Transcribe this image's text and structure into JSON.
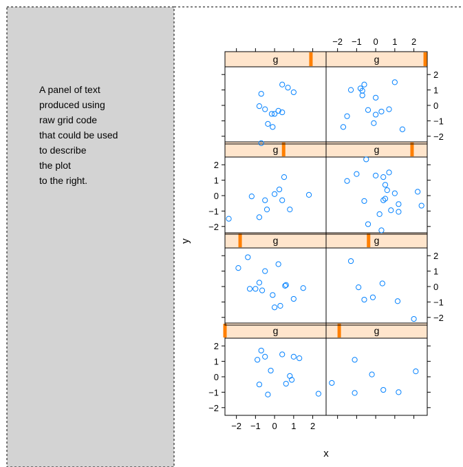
{
  "text_panel": {
    "lines": [
      "A panel of text",
      "produced using",
      "raw grid code",
      "that could be used",
      "to describe",
      "the plot",
      "to the right."
    ]
  },
  "colors": {
    "side_panel_bg": "#d3d3d3",
    "strip_bg": "#ffe5cc",
    "strip_indicator": "#ff7f00",
    "points": "#0080ff"
  },
  "chart_data": {
    "type": "scatter",
    "layout": {
      "columns": 2,
      "rows": 4,
      "order": "rows filled bottom-to-top, left-to-right"
    },
    "xlabel": "x",
    "ylabel": "y",
    "xlim": [
      -2.6,
      2.7
    ],
    "ylim": [
      -2.5,
      2.5
    ],
    "xticks": [
      -2,
      -1,
      0,
      1,
      2
    ],
    "xtick_labels": [
      "−2",
      "−1",
      "0",
      "1",
      "2"
    ],
    "yticks": [
      -2,
      -1,
      0,
      1,
      2
    ],
    "ytick_labels": [
      "−2",
      "−1",
      "0",
      "1",
      "2"
    ],
    "strip_label": "g",
    "panels": [
      {
        "row": 1,
        "col": 1,
        "strip": "g",
        "level": 0.0,
        "points": [
          [
            -0.7,
            1.7
          ],
          [
            -0.5,
            1.3
          ],
          [
            0.4,
            1.45
          ],
          [
            1.0,
            1.3
          ],
          [
            1.3,
            1.2
          ],
          [
            -0.9,
            1.1
          ],
          [
            -0.2,
            0.4
          ],
          [
            0.8,
            0.05
          ],
          [
            0.9,
            -0.2
          ],
          [
            0.6,
            -0.45
          ],
          [
            -0.8,
            -0.5
          ],
          [
            -0.35,
            -1.15
          ],
          [
            2.3,
            -1.1
          ]
        ]
      },
      {
        "row": 1,
        "col": 2,
        "strip": "g",
        "level": 0.13,
        "points": [
          [
            -1.1,
            1.1
          ],
          [
            -2.3,
            -0.4
          ],
          [
            -0.2,
            0.15
          ],
          [
            -1.1,
            -1.05
          ],
          [
            0.4,
            -0.85
          ],
          [
            1.2,
            -1.0
          ],
          [
            2.1,
            0.35
          ]
        ]
      },
      {
        "row": 2,
        "col": 1,
        "strip": "g",
        "level": 0.15,
        "points": [
          [
            -1.9,
            1.2
          ],
          [
            -1.4,
            1.9
          ],
          [
            -0.8,
            0.25
          ],
          [
            -0.5,
            1.0
          ],
          [
            0.2,
            1.45
          ],
          [
            0.55,
            0.05
          ],
          [
            0.6,
            0.1
          ],
          [
            -1.0,
            -0.15
          ],
          [
            -1.3,
            -0.15
          ],
          [
            -0.65,
            -0.25
          ],
          [
            1.5,
            -0.1
          ],
          [
            -0.1,
            -0.55
          ],
          [
            1.0,
            -0.8
          ],
          [
            0.3,
            -1.25
          ],
          [
            0.0,
            -1.35
          ]
        ]
      },
      {
        "row": 2,
        "col": 2,
        "strip": "g",
        "level": 0.42,
        "points": [
          [
            -1.3,
            1.65
          ],
          [
            -0.9,
            -0.05
          ],
          [
            0.35,
            0.2
          ],
          [
            -0.6,
            -0.85
          ],
          [
            -0.15,
            -0.7
          ],
          [
            1.15,
            -0.95
          ],
          [
            2.0,
            -2.1
          ]
        ]
      },
      {
        "row": 3,
        "col": 1,
        "strip": "g",
        "level": 0.58,
        "points": [
          [
            0.5,
            1.2
          ],
          [
            -1.2,
            -0.05
          ],
          [
            0.25,
            0.4
          ],
          [
            0.0,
            0.1
          ],
          [
            -0.5,
            -0.3
          ],
          [
            1.8,
            0.05
          ],
          [
            0.4,
            -0.3
          ],
          [
            -0.4,
            -0.9
          ],
          [
            0.8,
            -0.9
          ],
          [
            -0.8,
            -1.4
          ],
          [
            -2.4,
            -1.5
          ]
        ]
      },
      {
        "row": 3,
        "col": 2,
        "strip": "g",
        "level": 0.85,
        "points": [
          [
            -0.5,
            2.35
          ],
          [
            -1.0,
            1.4
          ],
          [
            -1.5,
            0.95
          ],
          [
            0.0,
            1.3
          ],
          [
            0.7,
            1.5
          ],
          [
            0.4,
            1.2
          ],
          [
            0.5,
            0.7
          ],
          [
            0.6,
            0.35
          ],
          [
            1.0,
            0.15
          ],
          [
            2.2,
            0.25
          ],
          [
            0.5,
            -0.2
          ],
          [
            0.4,
            -0.3
          ],
          [
            1.2,
            -0.55
          ],
          [
            2.4,
            -0.65
          ],
          [
            0.8,
            -0.95
          ],
          [
            -0.6,
            -0.35
          ],
          [
            1.2,
            -1.05
          ],
          [
            0.2,
            -1.2
          ],
          [
            -0.4,
            -1.85
          ],
          [
            0.3,
            -2.25
          ]
        ]
      },
      {
        "row": 4,
        "col": 1,
        "strip": "g",
        "level": 0.85,
        "points": [
          [
            0.4,
            1.35
          ],
          [
            0.7,
            1.15
          ],
          [
            -0.7,
            0.75
          ],
          [
            1.0,
            0.85
          ],
          [
            -0.8,
            -0.05
          ],
          [
            -0.5,
            -0.25
          ],
          [
            0.0,
            -0.55
          ],
          [
            0.4,
            -0.45
          ],
          [
            -0.15,
            -0.55
          ],
          [
            0.2,
            -0.35
          ],
          [
            -0.35,
            -1.2
          ],
          [
            -0.1,
            -1.4
          ],
          [
            -0.7,
            -2.45
          ]
        ]
      },
      {
        "row": 4,
        "col": 2,
        "strip": "g",
        "level": 0.98,
        "points": [
          [
            -0.6,
            1.35
          ],
          [
            -0.8,
            1.1
          ],
          [
            -0.7,
            0.95
          ],
          [
            -1.3,
            1.0
          ],
          [
            -0.7,
            0.65
          ],
          [
            0.0,
            0.5
          ],
          [
            1.0,
            1.5
          ],
          [
            0.7,
            -0.25
          ],
          [
            -0.4,
            -0.3
          ],
          [
            0.0,
            -0.6
          ],
          [
            0.3,
            -0.4
          ],
          [
            -1.5,
            -0.7
          ],
          [
            -1.7,
            -1.4
          ],
          [
            -0.1,
            -1.15
          ],
          [
            1.4,
            -1.55
          ]
        ]
      }
    ]
  }
}
